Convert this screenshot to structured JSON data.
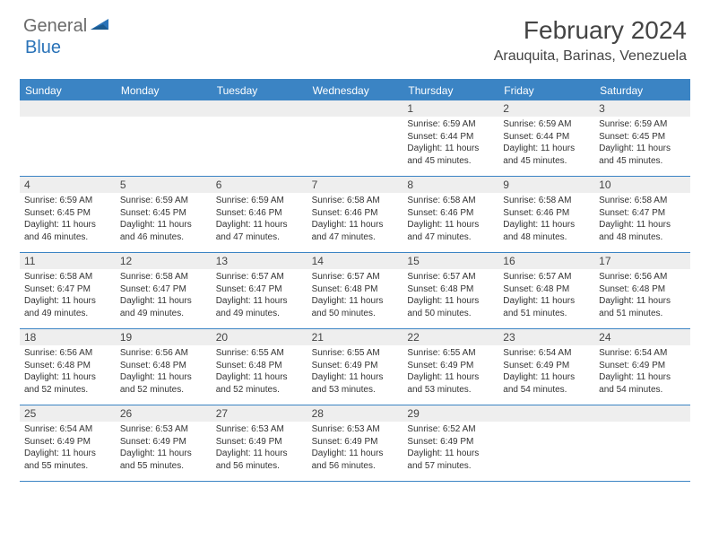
{
  "logo": {
    "part1": "General",
    "part2": "Blue"
  },
  "title": "February 2024",
  "location": "Arauquita, Barinas, Venezuela",
  "header_color": "#3b84c4",
  "daynum_bg": "#eeeeee",
  "text_color": "#333333",
  "days_of_week": [
    "Sunday",
    "Monday",
    "Tuesday",
    "Wednesday",
    "Thursday",
    "Friday",
    "Saturday"
  ],
  "weeks": [
    [
      {
        "n": "",
        "sunrise": "",
        "sunset": "",
        "daylight": ""
      },
      {
        "n": "",
        "sunrise": "",
        "sunset": "",
        "daylight": ""
      },
      {
        "n": "",
        "sunrise": "",
        "sunset": "",
        "daylight": ""
      },
      {
        "n": "",
        "sunrise": "",
        "sunset": "",
        "daylight": ""
      },
      {
        "n": "1",
        "sunrise": "Sunrise: 6:59 AM",
        "sunset": "Sunset: 6:44 PM",
        "daylight": "Daylight: 11 hours and 45 minutes."
      },
      {
        "n": "2",
        "sunrise": "Sunrise: 6:59 AM",
        "sunset": "Sunset: 6:44 PM",
        "daylight": "Daylight: 11 hours and 45 minutes."
      },
      {
        "n": "3",
        "sunrise": "Sunrise: 6:59 AM",
        "sunset": "Sunset: 6:45 PM",
        "daylight": "Daylight: 11 hours and 45 minutes."
      }
    ],
    [
      {
        "n": "4",
        "sunrise": "Sunrise: 6:59 AM",
        "sunset": "Sunset: 6:45 PM",
        "daylight": "Daylight: 11 hours and 46 minutes."
      },
      {
        "n": "5",
        "sunrise": "Sunrise: 6:59 AM",
        "sunset": "Sunset: 6:45 PM",
        "daylight": "Daylight: 11 hours and 46 minutes."
      },
      {
        "n": "6",
        "sunrise": "Sunrise: 6:59 AM",
        "sunset": "Sunset: 6:46 PM",
        "daylight": "Daylight: 11 hours and 47 minutes."
      },
      {
        "n": "7",
        "sunrise": "Sunrise: 6:58 AM",
        "sunset": "Sunset: 6:46 PM",
        "daylight": "Daylight: 11 hours and 47 minutes."
      },
      {
        "n": "8",
        "sunrise": "Sunrise: 6:58 AM",
        "sunset": "Sunset: 6:46 PM",
        "daylight": "Daylight: 11 hours and 47 minutes."
      },
      {
        "n": "9",
        "sunrise": "Sunrise: 6:58 AM",
        "sunset": "Sunset: 6:46 PM",
        "daylight": "Daylight: 11 hours and 48 minutes."
      },
      {
        "n": "10",
        "sunrise": "Sunrise: 6:58 AM",
        "sunset": "Sunset: 6:47 PM",
        "daylight": "Daylight: 11 hours and 48 minutes."
      }
    ],
    [
      {
        "n": "11",
        "sunrise": "Sunrise: 6:58 AM",
        "sunset": "Sunset: 6:47 PM",
        "daylight": "Daylight: 11 hours and 49 minutes."
      },
      {
        "n": "12",
        "sunrise": "Sunrise: 6:58 AM",
        "sunset": "Sunset: 6:47 PM",
        "daylight": "Daylight: 11 hours and 49 minutes."
      },
      {
        "n": "13",
        "sunrise": "Sunrise: 6:57 AM",
        "sunset": "Sunset: 6:47 PM",
        "daylight": "Daylight: 11 hours and 49 minutes."
      },
      {
        "n": "14",
        "sunrise": "Sunrise: 6:57 AM",
        "sunset": "Sunset: 6:48 PM",
        "daylight": "Daylight: 11 hours and 50 minutes."
      },
      {
        "n": "15",
        "sunrise": "Sunrise: 6:57 AM",
        "sunset": "Sunset: 6:48 PM",
        "daylight": "Daylight: 11 hours and 50 minutes."
      },
      {
        "n": "16",
        "sunrise": "Sunrise: 6:57 AM",
        "sunset": "Sunset: 6:48 PM",
        "daylight": "Daylight: 11 hours and 51 minutes."
      },
      {
        "n": "17",
        "sunrise": "Sunrise: 6:56 AM",
        "sunset": "Sunset: 6:48 PM",
        "daylight": "Daylight: 11 hours and 51 minutes."
      }
    ],
    [
      {
        "n": "18",
        "sunrise": "Sunrise: 6:56 AM",
        "sunset": "Sunset: 6:48 PM",
        "daylight": "Daylight: 11 hours and 52 minutes."
      },
      {
        "n": "19",
        "sunrise": "Sunrise: 6:56 AM",
        "sunset": "Sunset: 6:48 PM",
        "daylight": "Daylight: 11 hours and 52 minutes."
      },
      {
        "n": "20",
        "sunrise": "Sunrise: 6:55 AM",
        "sunset": "Sunset: 6:48 PM",
        "daylight": "Daylight: 11 hours and 52 minutes."
      },
      {
        "n": "21",
        "sunrise": "Sunrise: 6:55 AM",
        "sunset": "Sunset: 6:49 PM",
        "daylight": "Daylight: 11 hours and 53 minutes."
      },
      {
        "n": "22",
        "sunrise": "Sunrise: 6:55 AM",
        "sunset": "Sunset: 6:49 PM",
        "daylight": "Daylight: 11 hours and 53 minutes."
      },
      {
        "n": "23",
        "sunrise": "Sunrise: 6:54 AM",
        "sunset": "Sunset: 6:49 PM",
        "daylight": "Daylight: 11 hours and 54 minutes."
      },
      {
        "n": "24",
        "sunrise": "Sunrise: 6:54 AM",
        "sunset": "Sunset: 6:49 PM",
        "daylight": "Daylight: 11 hours and 54 minutes."
      }
    ],
    [
      {
        "n": "25",
        "sunrise": "Sunrise: 6:54 AM",
        "sunset": "Sunset: 6:49 PM",
        "daylight": "Daylight: 11 hours and 55 minutes."
      },
      {
        "n": "26",
        "sunrise": "Sunrise: 6:53 AM",
        "sunset": "Sunset: 6:49 PM",
        "daylight": "Daylight: 11 hours and 55 minutes."
      },
      {
        "n": "27",
        "sunrise": "Sunrise: 6:53 AM",
        "sunset": "Sunset: 6:49 PM",
        "daylight": "Daylight: 11 hours and 56 minutes."
      },
      {
        "n": "28",
        "sunrise": "Sunrise: 6:53 AM",
        "sunset": "Sunset: 6:49 PM",
        "daylight": "Daylight: 11 hours and 56 minutes."
      },
      {
        "n": "29",
        "sunrise": "Sunrise: 6:52 AM",
        "sunset": "Sunset: 6:49 PM",
        "daylight": "Daylight: 11 hours and 57 minutes."
      },
      {
        "n": "",
        "sunrise": "",
        "sunset": "",
        "daylight": ""
      },
      {
        "n": "",
        "sunrise": "",
        "sunset": "",
        "daylight": ""
      }
    ]
  ]
}
